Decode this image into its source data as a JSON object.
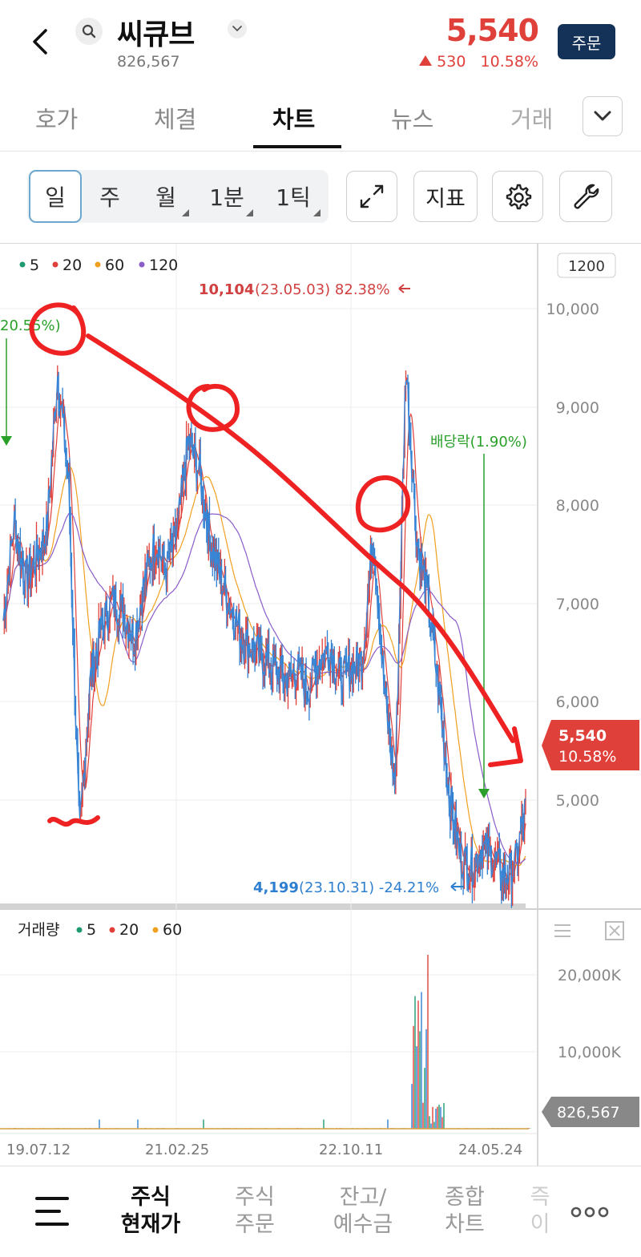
{
  "header": {
    "back_icon": "chevron-left-icon",
    "search_icon": "search-icon",
    "stock_name": "씨큐브",
    "dropdown_icon": "chevron-down-icon",
    "volume": "826,567",
    "price": "5,540",
    "change_amount": "530",
    "change_percent": "10.58%",
    "order_label": "주문",
    "price_color": "#e0403a"
  },
  "tabs": [
    {
      "label": "호가",
      "active": false
    },
    {
      "label": "체결",
      "active": false
    },
    {
      "label": "차트",
      "active": true
    },
    {
      "label": "뉴스",
      "active": false
    },
    {
      "label": "거래",
      "active": false
    }
  ],
  "period_buttons": [
    {
      "label": "일",
      "active": true
    },
    {
      "label": "주",
      "active": false
    },
    {
      "label": "월",
      "active": false
    },
    {
      "label": "1분",
      "active": false
    },
    {
      "label": "1틱",
      "active": false
    }
  ],
  "tools": {
    "fullscreen_icon": "expand-icon",
    "indicator_label": "지표",
    "settings_icon": "gear-icon",
    "wrench_icon": "wrench-icon"
  },
  "chart_data": {
    "type": "line",
    "price_chart": {
      "legend": [
        "5",
        "20",
        "60",
        "120"
      ],
      "legend_colors": [
        "#1e9a6e",
        "#e0403a",
        "#f0a020",
        "#8a5cc8"
      ],
      "period_box": "1200",
      "y_ticks": [
        "10,000",
        "9,000",
        "8,000",
        "7,000",
        "6,000",
        "5,000"
      ],
      "ylim": [
        4000,
        10600
      ],
      "high_label": {
        "price": "10,104",
        "detail": "(23.05.03) 82.38%"
      },
      "low_label": {
        "price": "4,199",
        "detail": "(23.10.31) -24.21%"
      },
      "left_label": "20.55%)",
      "dividend_label": "배당락(1.90%)",
      "current_price": "5,540",
      "current_change": "10.58%",
      "approx_close": [
        7200,
        8200,
        7600,
        7800,
        8100,
        9700,
        8600,
        5000,
        6600,
        7100,
        7400,
        7300,
        7000,
        7600,
        8000,
        7700,
        8100,
        9000,
        8700,
        8000,
        7600,
        7300,
        7000,
        6900,
        6800,
        6700,
        6600,
        6700,
        6500,
        6800,
        6900,
        6600,
        6700,
        6800,
        8100,
        6500,
        5500,
        9800,
        8000,
        7400,
        6500,
        5400,
        4800,
        4700,
        4900,
        4800,
        4600,
        4700,
        5300
      ]
    },
    "volume_chart": {
      "legend_title": "거래량",
      "legend": [
        "5",
        "20",
        "60"
      ],
      "legend_colors": [
        "#1e9a6e",
        "#e0403a",
        "#f0a020"
      ],
      "y_ticks": [
        "20,000K",
        "10,000K"
      ],
      "current_volume": "826,567",
      "x_ticks": [
        "19.07.12",
        "21.02.25",
        "22.10.11",
        "24.05.24"
      ]
    }
  },
  "bottom_nav": {
    "menu_icon": "menu-icon",
    "items": [
      {
        "label": "주식\n현재가",
        "active": true
      },
      {
        "label": "주식\n주문",
        "active": false
      },
      {
        "label": "잔고/\n예수금",
        "active": false
      },
      {
        "label": "종합\n차트",
        "active": false
      },
      {
        "label": "즉\n이",
        "active": false
      }
    ],
    "more_icon": "more-dots-icon"
  }
}
